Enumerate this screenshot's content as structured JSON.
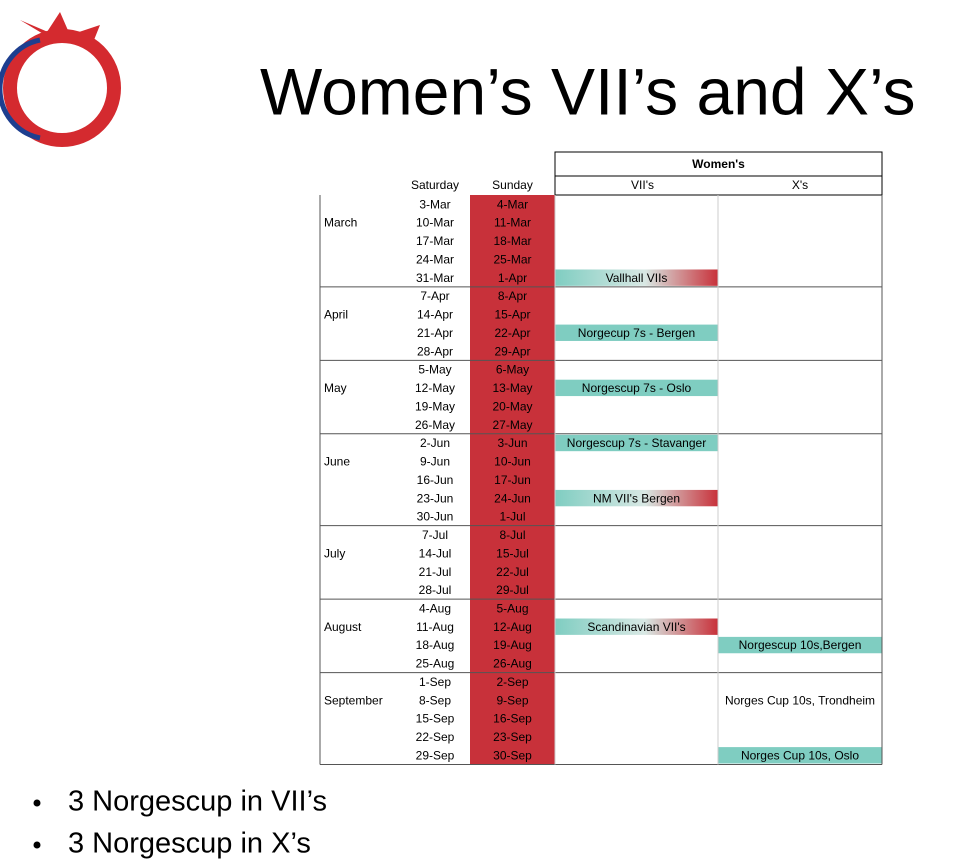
{
  "title": "Women’s VII’s and X’s",
  "table": {
    "group_header": "Women's",
    "headers": [
      "Saturday",
      "Sunday",
      "VII's",
      "X's"
    ],
    "months": [
      {
        "name": "March",
        "weeks": [
          {
            "sat": "3-Mar",
            "sun": "4-Mar"
          },
          {
            "sat": "10-Mar",
            "sun": "11-Mar"
          },
          {
            "sat": "17-Mar",
            "sun": "18-Mar"
          },
          {
            "sat": "24-Mar",
            "sun": "25-Mar"
          },
          {
            "sat": "31-Mar",
            "sun": "1-Apr",
            "vii": {
              "text": "Vallhall VIIs",
              "fill": "gradient"
            }
          }
        ]
      },
      {
        "name": "April",
        "weeks": [
          {
            "sat": "7-Apr",
            "sun": "8-Apr"
          },
          {
            "sat": "14-Apr",
            "sun": "15-Apr"
          },
          {
            "sat": "21-Apr",
            "sun": "22-Apr",
            "vii": {
              "text": "Norgecup 7s - Bergen",
              "fill": "#7fcdc1"
            }
          },
          {
            "sat": "28-Apr",
            "sun": "29-Apr"
          }
        ]
      },
      {
        "name": "May",
        "weeks": [
          {
            "sat": "5-May",
            "sun": "6-May"
          },
          {
            "sat": "12-May",
            "sun": "13-May",
            "vii": {
              "text": "Norgescup 7s - Oslo",
              "fill": "#7fcdc1"
            }
          },
          {
            "sat": "19-May",
            "sun": "20-May"
          },
          {
            "sat": "26-May",
            "sun": "27-May"
          }
        ]
      },
      {
        "name": "June",
        "weeks": [
          {
            "sat": "2-Jun",
            "sun": "3-Jun",
            "vii": {
              "text": "Norgescup 7s - Stavanger",
              "fill": "#7fcdc1"
            }
          },
          {
            "sat": "9-Jun",
            "sun": "10-Jun"
          },
          {
            "sat": "16-Jun",
            "sun": "17-Jun"
          },
          {
            "sat": "23-Jun",
            "sun": "24-Jun",
            "vii": {
              "text": "NM VII's Bergen",
              "fill": "gradient"
            }
          },
          {
            "sat": "30-Jun",
            "sun": "1-Jul"
          }
        ]
      },
      {
        "name": "July",
        "weeks": [
          {
            "sat": "7-Jul",
            "sun": "8-Jul"
          },
          {
            "sat": "14-Jul",
            "sun": "15-Jul"
          },
          {
            "sat": "21-Jul",
            "sun": "22-Jul"
          },
          {
            "sat": "28-Jul",
            "sun": "29-Jul"
          }
        ]
      },
      {
        "name": "August",
        "weeks": [
          {
            "sat": "4-Aug",
            "sun": "5-Aug"
          },
          {
            "sat": "11-Aug",
            "sun": "12-Aug",
            "vii": {
              "text": "Scandinavian VII's",
              "fill": "gradient"
            }
          },
          {
            "sat": "18-Aug",
            "sun": "19-Aug",
            "x": {
              "text": "Norgescup 10s,Bergen",
              "fill": "#7fcdc1"
            }
          },
          {
            "sat": "25-Aug",
            "sun": "26-Aug"
          }
        ]
      },
      {
        "name": "September",
        "weeks": [
          {
            "sat": "1-Sep",
            "sun": "2-Sep"
          },
          {
            "sat": "8-Sep",
            "sun": "9-Sep",
            "x": {
              "text": "Norges Cup 10s, Trondheim",
              "fill": "#ffffff"
            }
          },
          {
            "sat": "15-Sep",
            "sun": "16-Sep"
          },
          {
            "sat": "22-Sep",
            "sun": "23-Sep"
          },
          {
            "sat": "29-Sep",
            "sun": "30-Sep",
            "x": {
              "text": "Norges Cup 10s, Oslo",
              "fill": "#7fcdc1"
            }
          }
        ]
      }
    ]
  },
  "bullets": [
    "3 Norgescup in VII’s",
    "3 Norgescup in X’s"
  ]
}
